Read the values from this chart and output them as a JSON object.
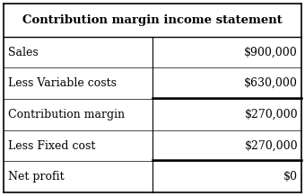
{
  "title": "Contribution margin income statement",
  "rows": [
    {
      "label": "Sales",
      "value": "$900,000",
      "underline_value": false
    },
    {
      "label": "Less Variable costs",
      "value": "$630,000",
      "underline_value": true
    },
    {
      "label": "Contribution margin",
      "value": "$270,000",
      "underline_value": false
    },
    {
      "label": "Less Fixed cost",
      "value": "$270,000",
      "underline_value": true
    },
    {
      "label": "Net profit",
      "value": "$0",
      "underline_value": false
    }
  ],
  "bg_color": "#ffffff",
  "border_color": "#000000",
  "title_font_size": 9.5,
  "row_font_size": 9.0,
  "col_split": 0.5,
  "fig_width": 3.4,
  "fig_height": 2.18,
  "dpi": 100
}
